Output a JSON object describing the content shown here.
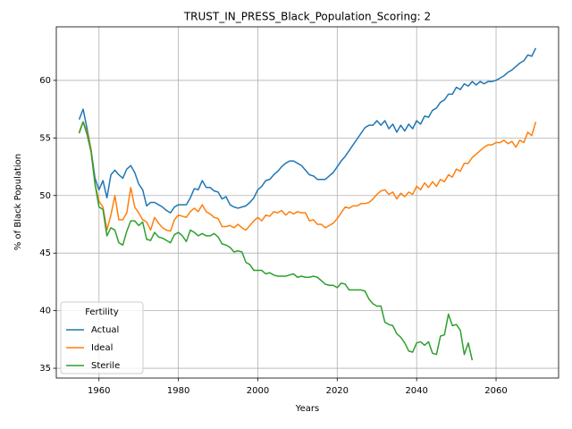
{
  "chart_data": {
    "type": "line",
    "title": "TRUST_IN_PRESS_Black_Population_Scoring: 2",
    "x_label": "Years",
    "y_label": "% of Black Population",
    "x": [
      1955,
      1956,
      1957,
      1958,
      1959,
      1960,
      1961,
      1962,
      1963,
      1964,
      1965,
      1966,
      1967,
      1968,
      1969,
      1970,
      1971,
      1972,
      1973,
      1974,
      1975,
      1976,
      1977,
      1978,
      1979,
      1980,
      1981,
      1982,
      1983,
      1984,
      1985,
      1986,
      1987,
      1988,
      1989,
      1990,
      1991,
      1992,
      1993,
      1994,
      1995,
      1996,
      1997,
      1998,
      1999,
      2000,
      2001,
      2002,
      2003,
      2004,
      2005,
      2006,
      2007,
      2008,
      2009,
      2010,
      2011,
      2012,
      2013,
      2014,
      2015,
      2016,
      2017,
      2018,
      2019,
      2020,
      2021,
      2022,
      2023,
      2024,
      2025,
      2026,
      2027,
      2028,
      2029,
      2030,
      2031,
      2032,
      2033,
      2034,
      2035,
      2036,
      2037,
      2038,
      2039,
      2040,
      2041,
      2042,
      2043,
      2044,
      2045,
      2046,
      2047,
      2048,
      2049,
      2050,
      2051,
      2052,
      2053,
      2054,
      2055,
      2056,
      2057,
      2058,
      2059,
      2060,
      2061,
      2062,
      2063,
      2064,
      2065,
      2066,
      2067,
      2068,
      2069,
      2070
    ],
    "series": [
      {
        "name": "Actual",
        "color": "#1f77b4",
        "values": [
          56.6,
          57.5,
          55.8,
          54.0,
          51.5,
          50.5,
          51.3,
          49.8,
          51.8,
          52.2,
          51.8,
          51.5,
          52.3,
          52.6,
          52.0,
          51.0,
          50.5,
          49.1,
          49.4,
          49.4,
          49.2,
          49.0,
          48.7,
          48.5,
          49.0,
          49.2,
          49.2,
          49.2,
          49.8,
          50.6,
          50.5,
          51.3,
          50.7,
          50.7,
          50.4,
          50.3,
          49.7,
          49.9,
          49.2,
          49.0,
          48.9,
          49.0,
          49.1,
          49.4,
          49.8,
          50.5,
          50.8,
          51.3,
          51.4,
          51.8,
          52.1,
          52.5,
          52.8,
          53.0,
          53.0,
          52.8,
          52.6,
          52.2,
          51.8,
          51.7,
          51.4,
          51.4,
          51.4,
          51.7,
          52.0,
          52.5,
          53.0,
          53.4,
          53.9,
          54.4,
          54.9,
          55.4,
          55.9,
          56.1,
          56.1,
          56.5,
          56.1,
          56.5,
          55.8,
          56.2,
          55.5,
          56.1,
          55.6,
          56.2,
          55.8,
          56.5,
          56.2,
          56.9,
          56.8,
          57.4,
          57.6,
          58.1,
          58.3,
          58.8,
          58.8,
          59.4,
          59.2,
          59.7,
          59.5,
          59.9,
          59.6,
          59.9,
          59.7,
          59.9,
          59.9,
          60.0,
          60.2,
          60.4,
          60.7,
          60.9,
          61.2,
          61.5,
          61.7,
          62.2,
          62.1,
          62.8
        ]
      },
      {
        "name": "Ideal",
        "color": "#ff7f0e",
        "values": [
          55.5,
          56.4,
          55.5,
          54.0,
          51.0,
          49.5,
          49.0,
          47.0,
          48.3,
          50.0,
          47.9,
          47.9,
          48.5,
          50.7,
          49.0,
          48.5,
          47.9,
          47.7,
          47.0,
          48.1,
          47.6,
          47.2,
          47.0,
          46.9,
          47.9,
          48.3,
          48.2,
          48.1,
          48.6,
          48.9,
          48.6,
          49.2,
          48.6,
          48.4,
          48.1,
          48.0,
          47.3,
          47.3,
          47.4,
          47.2,
          47.5,
          47.2,
          47.0,
          47.4,
          47.8,
          48.1,
          47.8,
          48.3,
          48.2,
          48.6,
          48.5,
          48.7,
          48.3,
          48.6,
          48.4,
          48.6,
          48.5,
          48.5,
          47.8,
          47.9,
          47.5,
          47.5,
          47.2,
          47.4,
          47.6,
          48.0,
          48.5,
          49.0,
          48.9,
          49.1,
          49.1,
          49.3,
          49.3,
          49.4,
          49.7,
          50.1,
          50.4,
          50.5,
          50.1,
          50.3,
          49.7,
          50.2,
          49.9,
          50.3,
          50.1,
          50.8,
          50.5,
          51.1,
          50.7,
          51.2,
          50.8,
          51.4,
          51.2,
          51.8,
          51.6,
          52.3,
          52.1,
          52.8,
          52.8,
          53.3,
          53.6,
          53.9,
          54.2,
          54.4,
          54.4,
          54.6,
          54.6,
          54.8,
          54.5,
          54.7,
          54.2,
          54.8,
          54.6,
          55.5,
          55.2,
          56.4
        ]
      },
      {
        "name": "Sterile",
        "color": "#2ca02c",
        "values": [
          55.4,
          56.4,
          55.3,
          53.8,
          51.0,
          49.0,
          48.8,
          46.5,
          47.2,
          47.0,
          45.9,
          45.7,
          46.9,
          47.8,
          47.8,
          47.4,
          47.7,
          46.2,
          46.1,
          46.8,
          46.4,
          46.3,
          46.1,
          45.9,
          46.6,
          46.8,
          46.5,
          46.0,
          47.0,
          46.8,
          46.5,
          46.7,
          46.5,
          46.5,
          46.7,
          46.4,
          45.8,
          45.7,
          45.5,
          45.1,
          45.2,
          45.1,
          44.2,
          44.0,
          43.5,
          43.5,
          43.5,
          43.2,
          43.3,
          43.1,
          43.0,
          43.0,
          43.0,
          43.1,
          43.2,
          42.9,
          43.0,
          42.9,
          42.9,
          43.0,
          42.9,
          42.6,
          42.3,
          42.2,
          42.2,
          42.0,
          42.4,
          42.3,
          41.8,
          41.8,
          41.8,
          41.8,
          41.7,
          41.0,
          40.6,
          40.4,
          40.4,
          39.0,
          38.8,
          38.7,
          38.0,
          37.7,
          37.2,
          36.5,
          36.4,
          37.2,
          37.3,
          37.0,
          37.3,
          36.3,
          36.2,
          37.8,
          37.9,
          39.7,
          38.7,
          38.8,
          38.3,
          36.2,
          37.2,
          35.7,
          null,
          null,
          null,
          null,
          null,
          null,
          null,
          null,
          null,
          null,
          null,
          null,
          null,
          null,
          null,
          null
        ]
      }
    ],
    "xlim": [
      1949.25,
      2075.75
    ],
    "ylim": [
      34.15,
      64.65
    ],
    "xticks": [
      1960,
      1980,
      2000,
      2020,
      2040,
      2060
    ],
    "yticks": [
      35,
      40,
      45,
      50,
      55,
      60
    ],
    "grid": true,
    "legend_title": "Fertility",
    "legend_position": "lower left"
  }
}
